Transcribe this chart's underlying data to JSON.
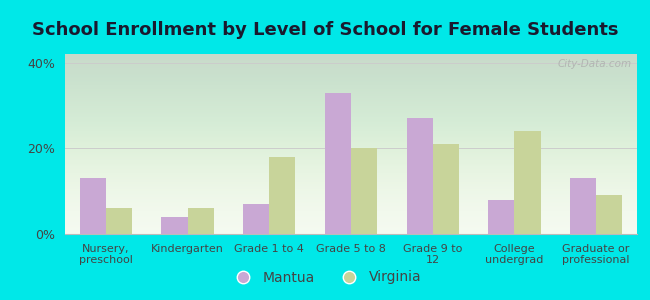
{
  "title": "School Enrollment by Level of School for Female Students",
  "categories": [
    "Nursery,\npreschool",
    "Kindergarten",
    "Grade 1 to 4",
    "Grade 5 to 8",
    "Grade 9 to\n12",
    "College\nundergrad",
    "Graduate or\nprofessional"
  ],
  "mantua": [
    13,
    4,
    7,
    33,
    27,
    8,
    13
  ],
  "virginia": [
    6,
    6,
    18,
    20,
    21,
    24,
    9
  ],
  "mantua_color": "#c9a8d4",
  "virginia_color": "#c8d49a",
  "bg_color": "#00e8e8",
  "yticks": [
    0,
    20,
    40
  ],
  "ylim": [
    0,
    42
  ],
  "title_fontsize": 13,
  "legend_labels": [
    "Mantua",
    "Virginia"
  ],
  "watermark": "City-Data.com",
  "bar_width": 0.32
}
